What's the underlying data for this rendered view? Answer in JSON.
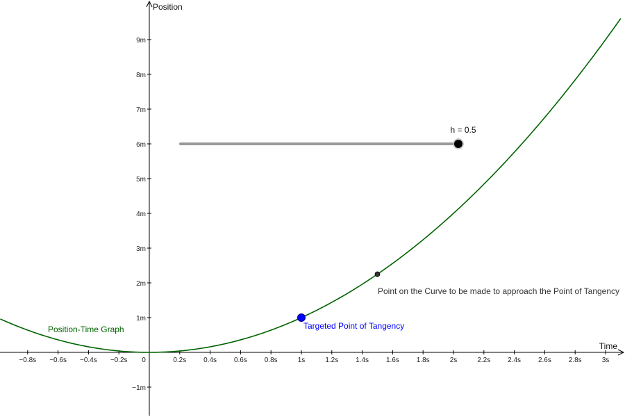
{
  "chart_data": {
    "type": "line",
    "title": "",
    "xlabel": "Time",
    "ylabel": "Position",
    "xlim": [
      -0.98,
      3.1
    ],
    "ylim": [
      -1.8,
      10.1
    ],
    "grid": false,
    "x_ticks": [
      {
        "value": -0.8,
        "label": "−0.8s"
      },
      {
        "value": -0.6,
        "label": "−0.6s"
      },
      {
        "value": -0.4,
        "label": "−0.4s"
      },
      {
        "value": -0.2,
        "label": "−0.2s"
      },
      {
        "value": 0.2,
        "label": "0.2s"
      },
      {
        "value": 0.4,
        "label": "0.4s"
      },
      {
        "value": 0.6,
        "label": "0.6s"
      },
      {
        "value": 0.8,
        "label": "0.8s"
      },
      {
        "value": 1.0,
        "label": "1s"
      },
      {
        "value": 1.2,
        "label": "1.2s"
      },
      {
        "value": 1.4,
        "label": "1.4s"
      },
      {
        "value": 1.6,
        "label": "1.6s"
      },
      {
        "value": 1.8,
        "label": "1.8s"
      },
      {
        "value": 2.0,
        "label": "2s"
      },
      {
        "value": 2.2,
        "label": "2.2s"
      },
      {
        "value": 2.4,
        "label": "2.4s"
      },
      {
        "value": 2.6,
        "label": "2.6s"
      },
      {
        "value": 2.8,
        "label": "2.8s"
      },
      {
        "value": 3.0,
        "label": "3s"
      }
    ],
    "y_ticks": [
      {
        "value": -1,
        "label": "−1m"
      },
      {
        "value": 1,
        "label": "1m"
      },
      {
        "value": 2,
        "label": "2m"
      },
      {
        "value": 3,
        "label": "3m"
      },
      {
        "value": 4,
        "label": "4m"
      },
      {
        "value": 5,
        "label": "5m"
      },
      {
        "value": 6,
        "label": "6m"
      },
      {
        "value": 7,
        "label": "7m"
      },
      {
        "value": 8,
        "label": "8m"
      },
      {
        "value": 9,
        "label": "9m"
      }
    ],
    "origin_label": "0",
    "series": [
      {
        "name": "Position-Time Graph",
        "function": "x^2",
        "color": "#006400",
        "x": [
          -0.98,
          -0.8,
          -0.6,
          -0.4,
          -0.2,
          0,
          0.2,
          0.4,
          0.6,
          0.8,
          1.0,
          1.2,
          1.4,
          1.6,
          1.8,
          2.0,
          2.2,
          2.4,
          2.6,
          2.8,
          3.0,
          3.1
        ],
        "y": [
          0.96,
          0.64,
          0.36,
          0.16,
          0.04,
          0,
          0.04,
          0.16,
          0.36,
          0.64,
          1.0,
          1.44,
          1.96,
          2.56,
          3.24,
          4.0,
          4.84,
          5.76,
          6.76,
          7.84,
          9.0,
          9.61
        ]
      }
    ],
    "points": [
      {
        "name": "Targeted Point of Tangency",
        "x": 1.0,
        "y": 1.0,
        "color": "#0000ff"
      },
      {
        "name": "Point on the Curve to be made to approach the Point of Tangency",
        "x": 1.5,
        "y": 2.25,
        "color": "#333333"
      }
    ],
    "slider": {
      "label": "h = 0.5",
      "value": 0.5,
      "min": -0.9,
      "max": 0.5,
      "track_color": "#999999",
      "handle_color": "#000000"
    }
  }
}
